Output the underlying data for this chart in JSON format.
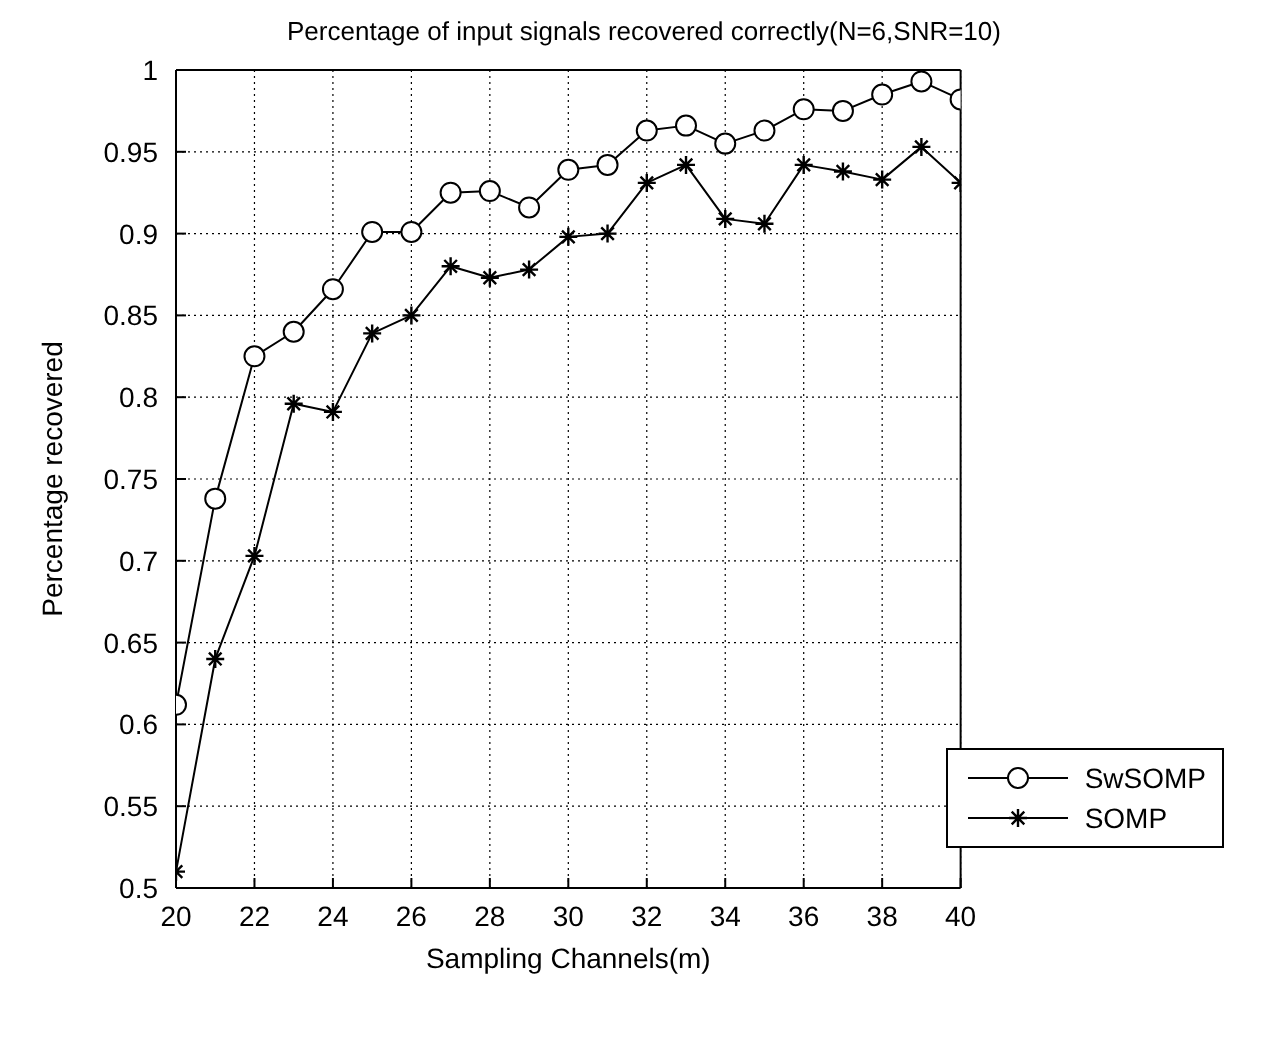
{
  "chart_data": {
    "type": "line",
    "title": "Percentage of input signals recovered correctly(N=6,SNR=10)",
    "xlabel": "Sampling Channels(m)",
    "ylabel": "Percentage recovered",
    "x": [
      20,
      21,
      22,
      23,
      24,
      25,
      26,
      27,
      28,
      29,
      30,
      31,
      32,
      33,
      34,
      35,
      36,
      37,
      38,
      39,
      40
    ],
    "series": [
      {
        "name": "SwSOMP",
        "color": "#000000",
        "marker": "circle",
        "values": [
          0.612,
          0.738,
          0.825,
          0.84,
          0.866,
          0.901,
          0.901,
          0.925,
          0.926,
          0.916,
          0.939,
          0.942,
          0.963,
          0.966,
          0.955,
          0.963,
          0.976,
          0.975,
          0.985,
          0.993,
          0.982
        ]
      },
      {
        "name": "SOMP",
        "color": "#000000",
        "marker": "cross",
        "values": [
          0.51,
          0.64,
          0.703,
          0.796,
          0.791,
          0.839,
          0.85,
          0.88,
          0.873,
          0.878,
          0.898,
          0.9,
          0.931,
          0.942,
          0.909,
          0.906,
          0.942,
          0.938,
          0.933,
          0.953,
          0.931
        ]
      }
    ],
    "xlim": [
      20,
      40
    ],
    "xticks": [
      20,
      22,
      24,
      26,
      28,
      30,
      32,
      34,
      36,
      38,
      40
    ],
    "ylim": [
      0.5,
      1
    ],
    "yticks": [
      0.5,
      0.55,
      0.6,
      0.65,
      0.7,
      0.75,
      0.8,
      0.85,
      0.9,
      0.95,
      1
    ],
    "grid": true,
    "legend": "bottom right",
    "line_style": "solid"
  }
}
